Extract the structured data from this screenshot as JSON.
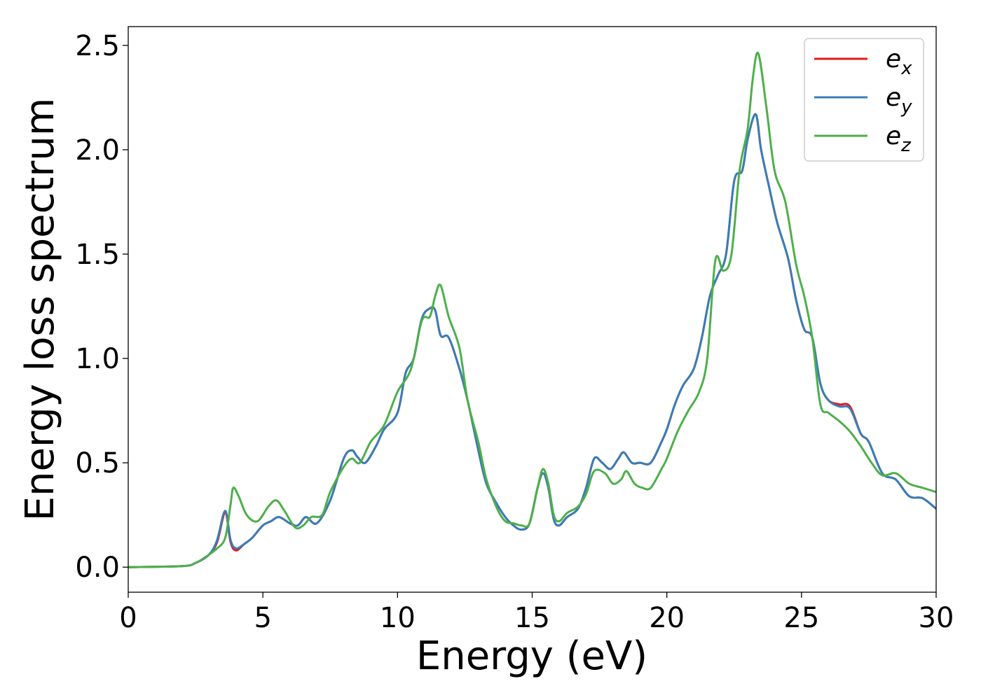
{
  "chart_data": {
    "type": "line",
    "title": "",
    "xlabel": "Energy (eV)",
    "ylabel": "Energy loss spectrum",
    "xlim": [
      0,
      30
    ],
    "ylim": [
      -0.12,
      2.59
    ],
    "xticks": [
      0,
      5,
      10,
      15,
      20,
      25,
      30
    ],
    "yticks": [
      0.0,
      0.5,
      1.0,
      1.5,
      2.0,
      2.5
    ],
    "xtick_labels": [
      "0",
      "5",
      "10",
      "15",
      "20",
      "25",
      "30"
    ],
    "ytick_labels": [
      "0.0",
      "0.5",
      "1.0",
      "1.5",
      "2.0",
      "2.5"
    ],
    "grid": false,
    "legend_position": "top-right",
    "series": [
      {
        "name": "e",
        "subscript": "x",
        "color": "#e41a1c",
        "x": [
          0,
          2.0,
          2.5,
          3.0,
          3.3,
          3.6,
          3.8,
          4.0,
          4.3,
          4.6,
          5.0,
          5.3,
          5.6,
          6.0,
          6.3,
          6.6,
          7.0,
          7.5,
          8.0,
          8.3,
          8.5,
          8.8,
          9.2,
          9.5,
          10.0,
          10.3,
          10.6,
          10.9,
          11.2,
          11.4,
          11.6,
          11.9,
          12.3,
          12.6,
          13.0,
          13.3,
          13.7,
          14.0,
          14.3,
          14.6,
          14.9,
          15.2,
          15.4,
          15.6,
          15.8,
          16.0,
          16.3,
          16.7,
          17.0,
          17.3,
          17.6,
          17.9,
          18.2,
          18.4,
          18.7,
          19.0,
          19.4,
          19.8,
          20.0,
          20.3,
          20.6,
          21.0,
          21.3,
          21.6,
          21.9,
          22.2,
          22.5,
          22.8,
          23.0,
          23.3,
          23.5,
          23.8,
          24.1,
          24.5,
          24.8,
          25.1,
          25.4,
          25.7,
          26.0,
          26.4,
          26.8,
          27.2,
          27.5,
          28.0,
          28.5,
          29.0,
          29.5,
          30.0
        ],
        "y": [
          0.0,
          0.005,
          0.02,
          0.06,
          0.12,
          0.26,
          0.12,
          0.08,
          0.11,
          0.14,
          0.2,
          0.22,
          0.24,
          0.21,
          0.2,
          0.24,
          0.21,
          0.32,
          0.52,
          0.56,
          0.53,
          0.5,
          0.58,
          0.66,
          0.74,
          0.93,
          1.0,
          1.19,
          1.24,
          1.23,
          1.11,
          1.1,
          0.95,
          0.8,
          0.56,
          0.4,
          0.3,
          0.24,
          0.2,
          0.18,
          0.21,
          0.38,
          0.45,
          0.38,
          0.23,
          0.2,
          0.24,
          0.28,
          0.38,
          0.52,
          0.5,
          0.47,
          0.52,
          0.55,
          0.5,
          0.5,
          0.5,
          0.6,
          0.66,
          0.78,
          0.87,
          0.95,
          1.1,
          1.3,
          1.4,
          1.5,
          1.85,
          1.9,
          2.05,
          2.17,
          2.0,
          1.82,
          1.65,
          1.48,
          1.28,
          1.14,
          1.1,
          0.88,
          0.8,
          0.78,
          0.77,
          0.64,
          0.6,
          0.45,
          0.42,
          0.34,
          0.33,
          0.28
        ]
      },
      {
        "name": "e",
        "subscript": "y",
        "color": "#377eb8",
        "x": [
          0,
          2.0,
          2.5,
          3.0,
          3.3,
          3.6,
          3.8,
          4.0,
          4.3,
          4.6,
          5.0,
          5.3,
          5.6,
          6.0,
          6.3,
          6.6,
          7.0,
          7.5,
          8.0,
          8.3,
          8.5,
          8.8,
          9.2,
          9.5,
          10.0,
          10.3,
          10.6,
          10.9,
          11.2,
          11.4,
          11.6,
          11.9,
          12.3,
          12.6,
          13.0,
          13.3,
          13.7,
          14.0,
          14.3,
          14.6,
          14.9,
          15.2,
          15.4,
          15.6,
          15.8,
          16.0,
          16.3,
          16.7,
          17.0,
          17.3,
          17.6,
          17.9,
          18.2,
          18.4,
          18.7,
          19.0,
          19.4,
          19.8,
          20.0,
          20.3,
          20.6,
          21.0,
          21.3,
          21.6,
          21.9,
          22.2,
          22.5,
          22.8,
          23.0,
          23.3,
          23.5,
          23.8,
          24.1,
          24.5,
          24.8,
          25.1,
          25.4,
          25.7,
          26.0,
          26.4,
          26.8,
          27.2,
          27.5,
          28.0,
          28.5,
          29.0,
          29.5,
          30.0
        ],
        "y": [
          0.0,
          0.005,
          0.02,
          0.06,
          0.13,
          0.27,
          0.13,
          0.09,
          0.11,
          0.14,
          0.2,
          0.22,
          0.24,
          0.21,
          0.2,
          0.24,
          0.21,
          0.32,
          0.52,
          0.56,
          0.53,
          0.5,
          0.58,
          0.66,
          0.74,
          0.93,
          1.0,
          1.19,
          1.24,
          1.23,
          1.11,
          1.1,
          0.95,
          0.8,
          0.56,
          0.4,
          0.3,
          0.24,
          0.2,
          0.18,
          0.21,
          0.38,
          0.45,
          0.38,
          0.23,
          0.2,
          0.24,
          0.28,
          0.38,
          0.52,
          0.5,
          0.47,
          0.52,
          0.55,
          0.5,
          0.5,
          0.5,
          0.6,
          0.66,
          0.78,
          0.87,
          0.95,
          1.1,
          1.3,
          1.4,
          1.5,
          1.85,
          1.9,
          2.05,
          2.17,
          2.0,
          1.82,
          1.65,
          1.48,
          1.28,
          1.14,
          1.1,
          0.88,
          0.8,
          0.77,
          0.76,
          0.64,
          0.6,
          0.45,
          0.42,
          0.34,
          0.33,
          0.28
        ]
      },
      {
        "name": "e",
        "subscript": "z",
        "color": "#4daf4a",
        "x": [
          0,
          2.0,
          2.5,
          3.0,
          3.3,
          3.6,
          3.8,
          3.9,
          4.1,
          4.4,
          4.8,
          5.2,
          5.5,
          5.8,
          6.2,
          6.5,
          6.8,
          7.2,
          7.5,
          8.0,
          8.3,
          8.6,
          9.0,
          9.5,
          10.0,
          10.5,
          10.9,
          11.2,
          11.4,
          11.6,
          11.9,
          12.3,
          12.6,
          13.0,
          13.3,
          13.7,
          14.0,
          14.3,
          14.6,
          14.9,
          15.2,
          15.4,
          15.6,
          15.8,
          16.0,
          16.3,
          16.7,
          17.0,
          17.3,
          17.7,
          18.0,
          18.3,
          18.5,
          18.8,
          19.1,
          19.4,
          19.8,
          20.0,
          20.4,
          20.8,
          21.2,
          21.5,
          21.8,
          22.1,
          22.4,
          22.7,
          23.0,
          23.2,
          23.4,
          23.7,
          24.0,
          24.4,
          24.8,
          25.1,
          25.4,
          25.7,
          26.0,
          26.4,
          26.8,
          27.2,
          27.6,
          28.0,
          28.5,
          29.0,
          29.5,
          30.0
        ],
        "y": [
          0.0,
          0.005,
          0.02,
          0.06,
          0.09,
          0.14,
          0.3,
          0.38,
          0.34,
          0.25,
          0.22,
          0.29,
          0.32,
          0.27,
          0.19,
          0.2,
          0.24,
          0.25,
          0.36,
          0.48,
          0.52,
          0.5,
          0.6,
          0.68,
          0.84,
          0.95,
          1.18,
          1.2,
          1.3,
          1.35,
          1.2,
          1.05,
          0.8,
          0.6,
          0.42,
          0.28,
          0.22,
          0.21,
          0.2,
          0.21,
          0.38,
          0.47,
          0.4,
          0.25,
          0.22,
          0.26,
          0.29,
          0.35,
          0.46,
          0.45,
          0.4,
          0.42,
          0.46,
          0.4,
          0.38,
          0.38,
          0.47,
          0.52,
          0.65,
          0.75,
          0.84,
          1.0,
          1.47,
          1.42,
          1.5,
          1.9,
          2.1,
          2.35,
          2.46,
          2.2,
          1.9,
          1.75,
          1.45,
          1.3,
          1.1,
          0.78,
          0.74,
          0.7,
          0.65,
          0.58,
          0.5,
          0.44,
          0.45,
          0.4,
          0.38,
          0.36
        ]
      }
    ]
  }
}
